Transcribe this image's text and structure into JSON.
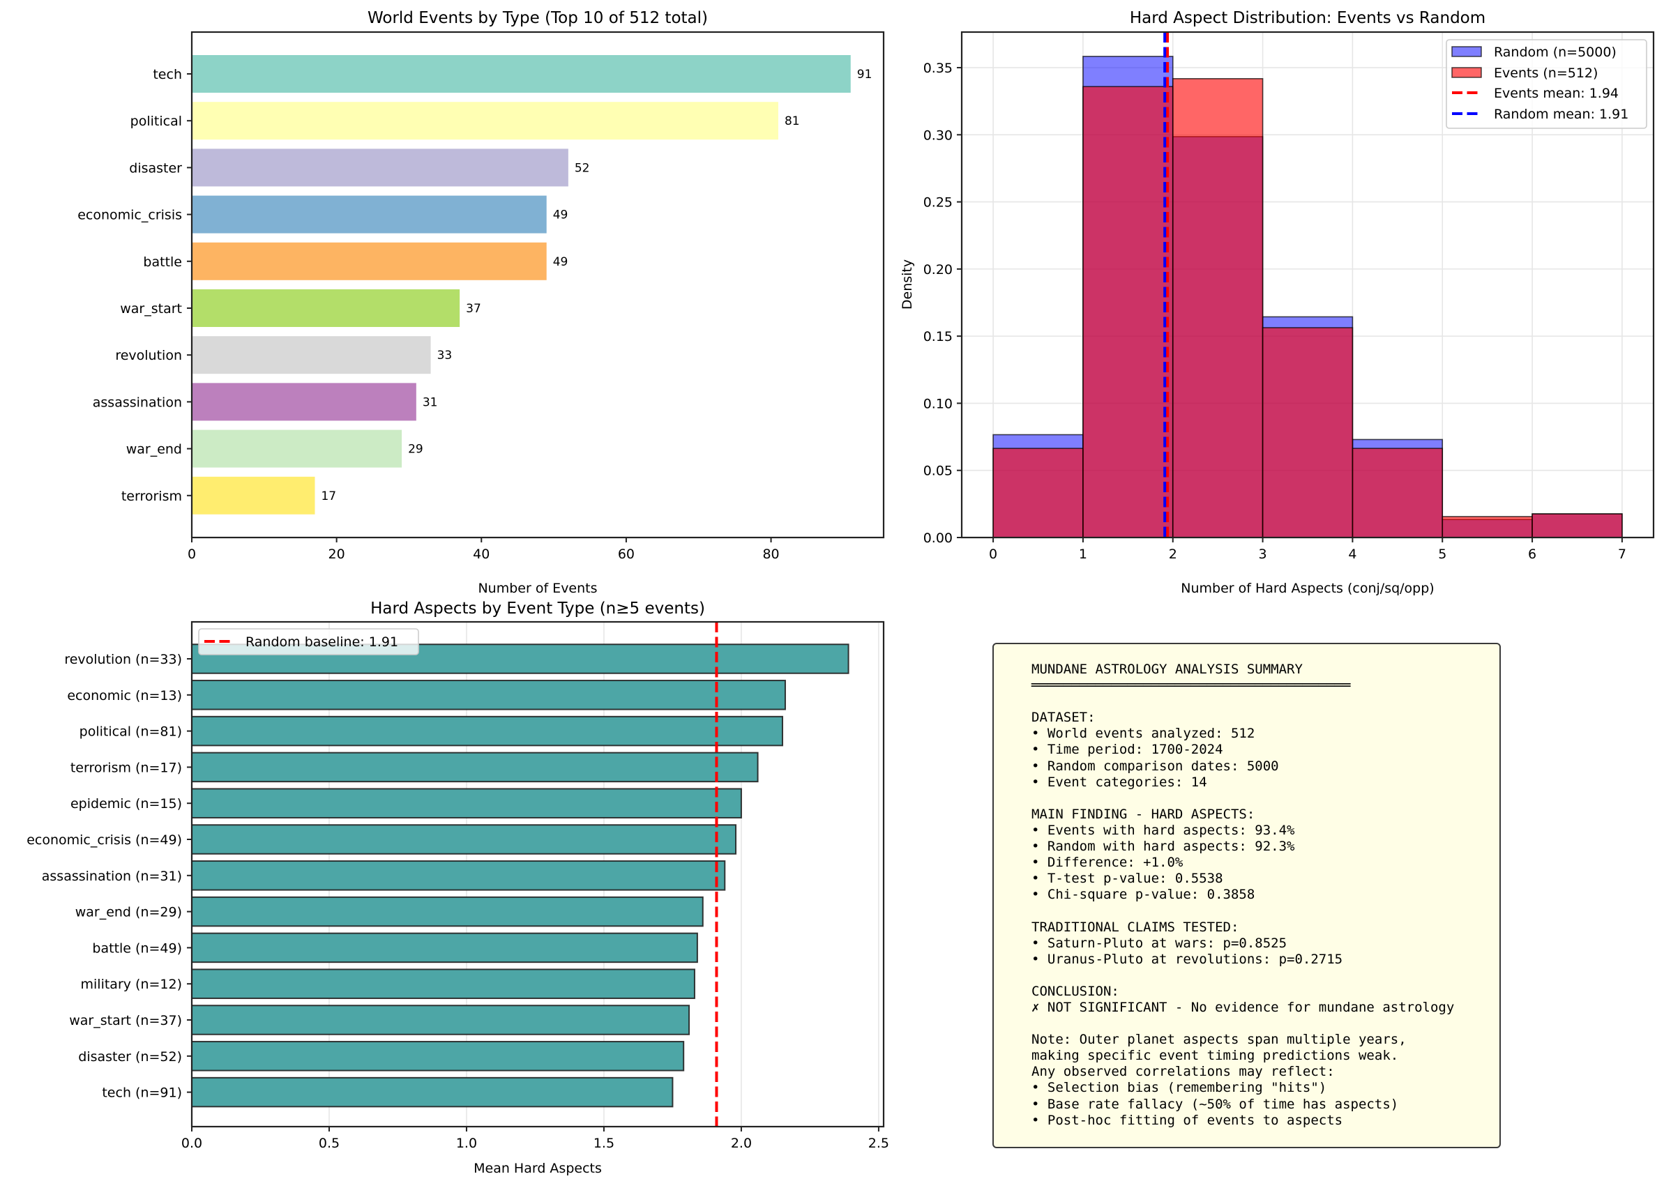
{
  "figure": {
    "panels": [
      "events-by-type",
      "hard-aspect-distribution",
      "hard-aspects-by-event-type",
      "summary"
    ]
  },
  "chart_data": [
    {
      "id": "events-by-type",
      "type": "bar",
      "orientation": "horizontal",
      "title": "World Events by Type (Top 10 of 512 total)",
      "xlabel": "Number of Events",
      "ylabel": "",
      "xlim": [
        0,
        95.55
      ],
      "xticks": [
        0,
        20,
        40,
        60,
        80
      ],
      "categories": [
        "tech",
        "political",
        "disaster",
        "economic_crisis",
        "battle",
        "war_start",
        "revolution",
        "assassination",
        "war_end",
        "terrorism"
      ],
      "values": [
        91,
        81,
        52,
        49,
        49,
        37,
        33,
        31,
        29,
        17
      ],
      "colors": [
        "#8dd3c7",
        "#ffffb3",
        "#bebada",
        "#80b1d3",
        "#fdb462",
        "#b3de69",
        "#d9d9d9",
        "#bc80bd",
        "#ccebc5",
        "#ffed6f"
      ],
      "data_labels": [
        "91",
        "81",
        "52",
        "49",
        "49",
        "37",
        "33",
        "31",
        "29",
        "17"
      ],
      "grid": false
    },
    {
      "id": "hard-aspect-distribution",
      "type": "bar",
      "subtype": "histogram",
      "title": "Hard Aspect Distribution: Events vs Random",
      "xlabel": "Number of Hard Aspects (conj/sq/opp)",
      "ylabel": "Density",
      "xlim": [
        -0.35,
        7.35
      ],
      "ylim": [
        0,
        0.3765
      ],
      "xticks": [
        0,
        1,
        2,
        3,
        4,
        5,
        6,
        7
      ],
      "yticks": [
        0.0,
        0.05,
        0.1,
        0.15,
        0.2,
        0.25,
        0.3,
        0.35
      ],
      "ytick_labels": [
        "0.00",
        "0.05",
        "0.10",
        "0.15",
        "0.20",
        "0.25",
        "0.30",
        "0.35"
      ],
      "bin_edges": [
        0,
        1,
        2,
        3,
        4,
        5,
        6,
        7
      ],
      "series": [
        {
          "name": "Random (n=5000)",
          "color": "#0000ff",
          "alpha": 0.5,
          "values": [
            0.0766,
            0.3584,
            0.2986,
            0.1644,
            0.073,
            0.0134,
            0.0176
          ]
        },
        {
          "name": "Events (n=512)",
          "color": "#ff0000",
          "alpha": 0.6,
          "values": [
            0.0664,
            0.3359,
            0.3418,
            0.1563,
            0.0664,
            0.0156,
            0.0176
          ]
        }
      ],
      "vlines": [
        {
          "name": "Events mean: 1.94",
          "x": 1.94,
          "color": "#ff0000",
          "style": "dashed"
        },
        {
          "name": "Random mean: 1.91",
          "x": 1.91,
          "color": "#0000ff",
          "style": "dashed"
        }
      ],
      "legend": {
        "position": "top-right",
        "entries": [
          "Random (n=5000)",
          "Events (n=512)",
          "Events mean: 1.94",
          "Random mean: 1.91"
        ]
      },
      "grid": true
    },
    {
      "id": "hard-aspects-by-event-type",
      "type": "bar",
      "orientation": "horizontal",
      "title": "Hard Aspects by Event Type (n≥5 events)",
      "xlabel": "Mean Hard Aspects",
      "ylabel": "",
      "xlim": [
        0,
        2.518
      ],
      "xticks": [
        0.0,
        0.5,
        1.0,
        1.5,
        2.0,
        2.5
      ],
      "xtick_labels": [
        "0.0",
        "0.5",
        "1.0",
        "1.5",
        "2.0",
        "2.5"
      ],
      "categories": [
        "revolution (n=33)",
        "economic (n=13)",
        "political (n=81)",
        "terrorism (n=17)",
        "epidemic (n=15)",
        "economic_crisis (n=49)",
        "assassination (n=31)",
        "war_end (n=29)",
        "battle (n=49)",
        "military (n=12)",
        "war_start (n=37)",
        "disaster (n=52)",
        "tech (n=91)"
      ],
      "values": [
        2.39,
        2.16,
        2.15,
        2.06,
        2.0,
        1.98,
        1.94,
        1.86,
        1.84,
        1.83,
        1.81,
        1.79,
        1.75
      ],
      "bar_color": "#4da6a6",
      "vlines": [
        {
          "name": "Random baseline: 1.91",
          "x": 1.91,
          "color": "#ff0000",
          "style": "dashed"
        }
      ],
      "legend": {
        "position": "top-left",
        "entries": [
          "Random baseline: 1.91"
        ]
      },
      "grid": true
    }
  ],
  "summary": {
    "lines": [
      "MUNDANE ASTROLOGY ANALYSIS SUMMARY",
      "════════════════════════════════════════",
      "",
      "DATASET:",
      "• World events analyzed: 512",
      "• Time period: 1700-2024",
      "• Random comparison dates: 5000",
      "• Event categories: 14",
      "",
      "MAIN FINDING - HARD ASPECTS:",
      "• Events with hard aspects: 93.4%",
      "• Random with hard aspects: 92.3%",
      "• Difference: +1.0%",
      "• T-test p-value: 0.5538",
      "• Chi-square p-value: 0.3858",
      "",
      "TRADITIONAL CLAIMS TESTED:",
      "• Saturn-Pluto at wars: p=0.8525",
      "• Uranus-Pluto at revolutions: p=0.2715",
      "",
      "CONCLUSION:",
      "✗ NOT SIGNIFICANT - No evidence for mundane astrology",
      "",
      "Note: Outer planet aspects span multiple years,",
      "making specific event timing predictions weak.",
      "Any observed correlations may reflect:",
      "• Selection bias (remembering \"hits\")",
      "• Base rate fallacy (~50% of time has aspects)",
      "• Post-hoc fitting of events to aspects"
    ]
  }
}
